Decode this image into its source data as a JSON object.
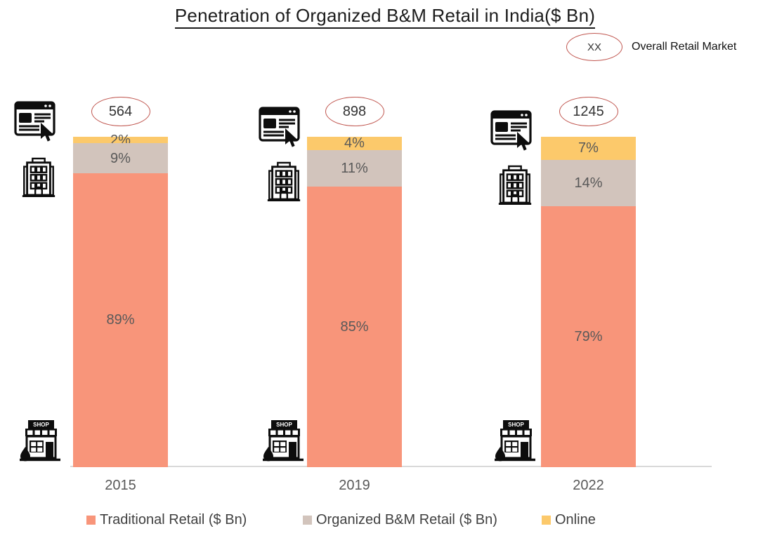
{
  "title": "Penetration of Organized B&M Retail in India($ Bn)",
  "key": {
    "oval_text": "XX",
    "label": "Overall Retail Market"
  },
  "chart_data": {
    "type": "bar",
    "subtype": "100%-stacked-column",
    "title": "Penetration of Organized B&M Retail in India($ Bn)",
    "categories": [
      "2015",
      "2019",
      "2022"
    ],
    "overall_market_totals_bn": [
      564,
      898,
      1245
    ],
    "series": [
      {
        "name": "Traditional Retail ($ Bn)",
        "color": "#F8957A",
        "values": [
          89,
          85,
          79
        ]
      },
      {
        "name": "Organized B&M Retail ($ Bn)",
        "color": "#D2C4BC",
        "values": [
          9,
          11,
          14
        ]
      },
      {
        "name": "Online",
        "color": "#FCC96B",
        "values": [
          2,
          4,
          7
        ]
      }
    ],
    "value_unit": "%",
    "ylim": [
      0,
      100
    ],
    "grid": false,
    "legend_position": "bottom",
    "annotation_oval_color": "#C0564F",
    "annotation_note": "Ovals above each column show Overall Retail Market size in $ Bn"
  },
  "bars": [
    {
      "year": "2015",
      "total": "564",
      "labels": {
        "online": "2%",
        "organized": "9%",
        "traditional": "89%"
      }
    },
    {
      "year": "2019",
      "total": "898",
      "labels": {
        "online": "4%",
        "organized": "11%",
        "traditional": "85%"
      }
    },
    {
      "year": "2022",
      "total": "1245",
      "labels": {
        "online": "7%",
        "organized": "14%",
        "traditional": "79%"
      }
    }
  ],
  "legend": [
    {
      "label": "Traditional Retail ($ Bn)",
      "color": "#F8957A"
    },
    {
      "label": "Organized B&M Retail ($ Bn)",
      "color": "#D2C4BC"
    },
    {
      "label": "Online",
      "color": "#FCC96B"
    }
  ],
  "icons": {
    "online": "browser-with-cursor-icon",
    "organized": "office-building-icon",
    "traditional": "shop-storefront-icon",
    "shop_sign_text": "SHOP"
  }
}
